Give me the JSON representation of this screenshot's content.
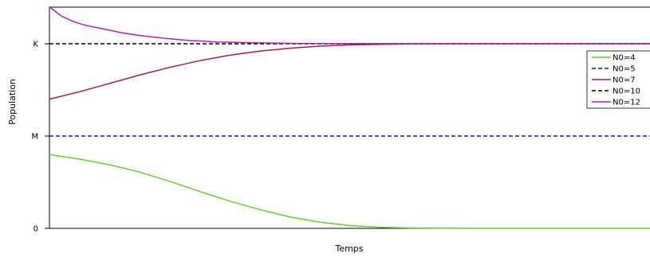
{
  "chart_data": {
    "type": "line",
    "title": "",
    "xlabel": "Temps",
    "ylabel": "Population",
    "xlim": [
      0,
      100
    ],
    "ylim": [
      0,
      12
    ],
    "yticks": [
      {
        "value": 0,
        "label": "0"
      },
      {
        "value": 5,
        "label": "M"
      },
      {
        "value": 10,
        "label": "K"
      }
    ],
    "grid": false,
    "legend_position": "right",
    "series": [
      {
        "name": "N0=4",
        "color": "#66cc33",
        "dash": "solid",
        "x": [
          0,
          5,
          10,
          15,
          20,
          25,
          30,
          35,
          40,
          45,
          50,
          55,
          60,
          65,
          70,
          75,
          80,
          85,
          90,
          95,
          100
        ],
        "y": [
          4.0,
          3.75,
          3.45,
          3.05,
          2.55,
          2.0,
          1.48,
          1.02,
          0.62,
          0.33,
          0.15,
          0.06,
          0.02,
          0.01,
          0.0,
          0.0,
          0.0,
          0.0,
          0.0,
          0.0,
          0.0
        ]
      },
      {
        "name": "N0=5",
        "color": "#1a1aaa",
        "dash": "dashed",
        "x": [
          0,
          100
        ],
        "y": [
          5.0,
          5.0
        ]
      },
      {
        "name": "N0=7",
        "color": "#a01e4a",
        "dash": "solid",
        "x": [
          0,
          5,
          10,
          15,
          20,
          25,
          30,
          35,
          40,
          45,
          50,
          55,
          60,
          65,
          70,
          75,
          80,
          85,
          90,
          95,
          100
        ],
        "y": [
          7.0,
          7.4,
          7.85,
          8.3,
          8.72,
          9.08,
          9.38,
          9.6,
          9.76,
          9.87,
          9.94,
          9.97,
          9.99,
          10.0,
          10.0,
          10.0,
          10.0,
          10.0,
          10.0,
          10.0,
          10.0
        ]
      },
      {
        "name": "N0=10",
        "color": "#000000",
        "dash": "dashed",
        "x": [
          0,
          100
        ],
        "y": [
          10.0,
          10.0
        ]
      },
      {
        "name": "N0=12",
        "color": "#b020b0",
        "dash": "solid",
        "x": [
          0,
          1,
          2,
          4,
          6,
          9,
          12,
          15,
          19,
          23,
          28,
          34,
          40,
          50,
          60,
          80,
          100
        ],
        "y": [
          12.0,
          11.75,
          11.5,
          11.2,
          11.0,
          10.8,
          10.6,
          10.45,
          10.3,
          10.18,
          10.1,
          10.05,
          10.02,
          10.01,
          10.0,
          10.0,
          10.0
        ]
      }
    ]
  }
}
